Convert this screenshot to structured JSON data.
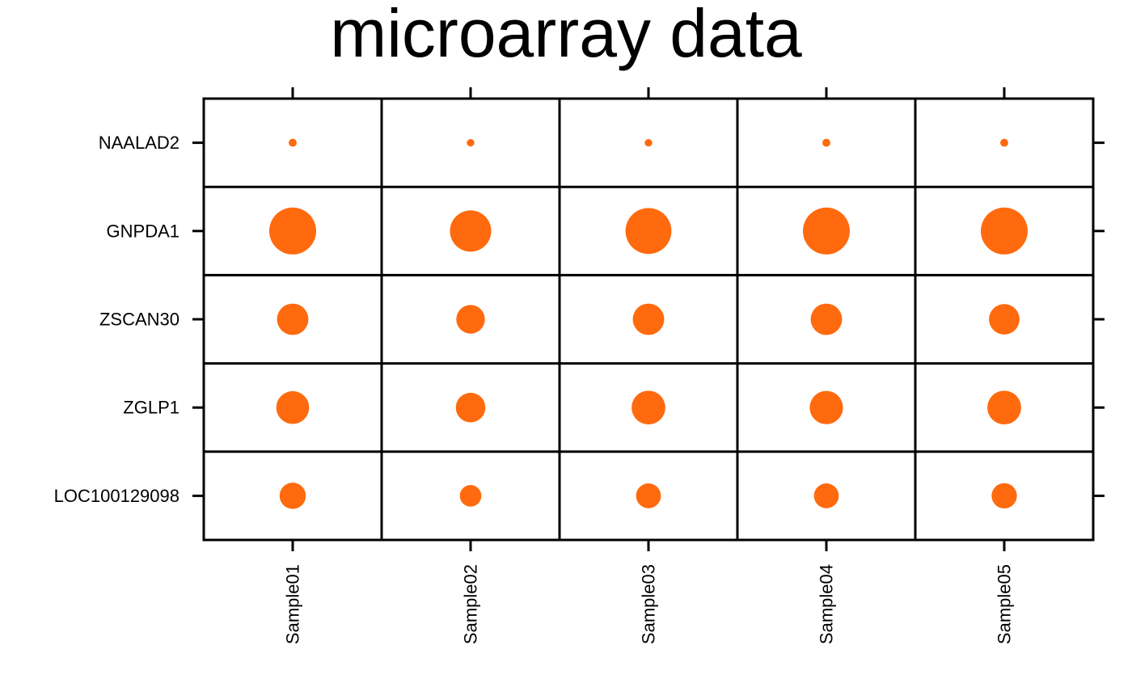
{
  "chart_data": {
    "type": "scatter",
    "subtype": "bubble-grid",
    "title": "microarray data",
    "xlabel": "",
    "ylabel": "",
    "categories": [
      "Sample01",
      "Sample02",
      "Sample03",
      "Sample04",
      "Sample05"
    ],
    "rows": [
      "NAALAD2",
      "GNPDA1",
      "ZSCAN30",
      "ZGLP1",
      "LOC100129098"
    ],
    "values": [
      [
        0.17,
        0.16,
        0.16,
        0.17,
        0.17
      ],
      [
        1.0,
        0.88,
        0.98,
        1.0,
        1.0
      ],
      [
        0.67,
        0.61,
        0.67,
        0.67,
        0.65
      ],
      [
        0.7,
        0.63,
        0.72,
        0.71,
        0.72
      ],
      [
        0.56,
        0.46,
        0.53,
        0.53,
        0.54
      ]
    ],
    "grid": true,
    "legend": "none",
    "marker_color": "#FF6A0E",
    "axis_color": "#000000"
  }
}
